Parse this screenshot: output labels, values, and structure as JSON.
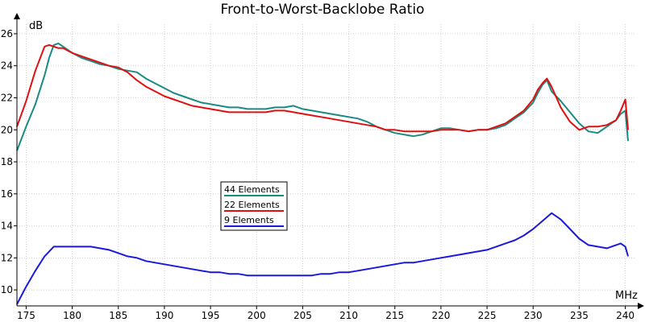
{
  "chart_data": {
    "type": "line",
    "title": "Front-to-Worst-Backlobe Ratio",
    "xlabel": "MHz",
    "ylabel": "dB",
    "xlim": [
      174,
      241
    ],
    "ylim": [
      9,
      26.6
    ],
    "xticks": [
      175,
      180,
      185,
      190,
      195,
      200,
      205,
      210,
      215,
      220,
      225,
      230,
      235,
      240
    ],
    "yticks": [
      10,
      12,
      14,
      16,
      18,
      20,
      22,
      24,
      26
    ],
    "grid": true,
    "legend_position": "center-left",
    "series": [
      {
        "name": "44 Elements",
        "color": "#1a8a82",
        "x": [
          174,
          175,
          176,
          177,
          177.5,
          178,
          178.5,
          179,
          180,
          181,
          182,
          183,
          184,
          185,
          186,
          187,
          188,
          189,
          190,
          191,
          192,
          193,
          194,
          195,
          196,
          197,
          198,
          199,
          200,
          201,
          202,
          203,
          204,
          205,
          206,
          207,
          208,
          209,
          210,
          211,
          212,
          213,
          214,
          215,
          216,
          217,
          218,
          219,
          220,
          221,
          222,
          223,
          224,
          225,
          226,
          227,
          228,
          229,
          230,
          230.5,
          231,
          231.5,
          232,
          233,
          234,
          235,
          236,
          237,
          238,
          239,
          239.5,
          240,
          240.3
        ],
        "y": [
          18.7,
          20.2,
          21.6,
          23.4,
          24.5,
          25.3,
          25.4,
          25.2,
          24.8,
          24.5,
          24.3,
          24.1,
          24.0,
          23.8,
          23.7,
          23.6,
          23.2,
          22.9,
          22.6,
          22.3,
          22.1,
          21.9,
          21.7,
          21.6,
          21.5,
          21.4,
          21.4,
          21.3,
          21.3,
          21.3,
          21.4,
          21.4,
          21.5,
          21.3,
          21.2,
          21.1,
          21.0,
          20.9,
          20.8,
          20.7,
          20.5,
          20.2,
          20.0,
          19.8,
          19.7,
          19.6,
          19.7,
          19.9,
          20.1,
          20.1,
          20.0,
          19.9,
          20.0,
          20.0,
          20.1,
          20.3,
          20.7,
          21.1,
          21.7,
          22.3,
          22.8,
          23.1,
          22.4,
          21.8,
          21.1,
          20.4,
          19.9,
          19.8,
          20.2,
          20.6,
          21.0,
          21.2,
          19.3
        ]
      },
      {
        "name": "22 Elements",
        "color": "#e01010",
        "x": [
          174,
          175,
          176,
          177,
          177.5,
          178,
          178.5,
          179,
          180,
          181,
          182,
          183,
          184,
          185,
          186,
          187,
          188,
          189,
          190,
          191,
          192,
          193,
          194,
          195,
          196,
          197,
          198,
          199,
          200,
          201,
          202,
          203,
          204,
          205,
          206,
          207,
          208,
          209,
          210,
          211,
          212,
          213,
          214,
          215,
          216,
          217,
          218,
          219,
          220,
          221,
          222,
          223,
          224,
          225,
          226,
          227,
          228,
          229,
          230,
          230.5,
          231,
          231.5,
          232,
          233,
          234,
          235,
          236,
          237,
          238,
          239,
          239.5,
          240,
          240.3
        ],
        "y": [
          20.2,
          21.8,
          23.7,
          25.2,
          25.3,
          25.2,
          25.1,
          25.1,
          24.8,
          24.6,
          24.4,
          24.2,
          24.0,
          23.9,
          23.6,
          23.1,
          22.7,
          22.4,
          22.1,
          21.9,
          21.7,
          21.5,
          21.4,
          21.3,
          21.2,
          21.1,
          21.1,
          21.1,
          21.1,
          21.1,
          21.2,
          21.2,
          21.1,
          21.0,
          20.9,
          20.8,
          20.7,
          20.6,
          20.5,
          20.4,
          20.3,
          20.2,
          20.0,
          20.0,
          19.9,
          19.9,
          19.9,
          19.9,
          20.0,
          20.0,
          20.0,
          19.9,
          20.0,
          20.0,
          20.2,
          20.4,
          20.8,
          21.2,
          21.9,
          22.5,
          22.9,
          23.2,
          22.7,
          21.4,
          20.5,
          20.0,
          20.2,
          20.2,
          20.3,
          20.6,
          21.2,
          21.9,
          20.0
        ]
      },
      {
        "name": "9 Elements",
        "color": "#1a1adc",
        "x": [
          174,
          175,
          176,
          177,
          178,
          179,
          180,
          181,
          182,
          183,
          184,
          185,
          186,
          187,
          188,
          189,
          190,
          191,
          192,
          193,
          194,
          195,
          196,
          197,
          198,
          199,
          200,
          201,
          202,
          203,
          204,
          205,
          206,
          207,
          208,
          209,
          210,
          211,
          212,
          213,
          214,
          215,
          216,
          217,
          218,
          219,
          220,
          221,
          222,
          223,
          224,
          225,
          226,
          227,
          228,
          229,
          230,
          231,
          232,
          233,
          234,
          235,
          236,
          237,
          238,
          239,
          239.5,
          240,
          240.3
        ],
        "y": [
          9.1,
          10.2,
          11.2,
          12.1,
          12.7,
          12.7,
          12.7,
          12.7,
          12.7,
          12.6,
          12.5,
          12.3,
          12.1,
          12.0,
          11.8,
          11.7,
          11.6,
          11.5,
          11.4,
          11.3,
          11.2,
          11.1,
          11.1,
          11.0,
          11.0,
          10.9,
          10.9,
          10.9,
          10.9,
          10.9,
          10.9,
          10.9,
          10.9,
          11.0,
          11.0,
          11.1,
          11.1,
          11.2,
          11.3,
          11.4,
          11.5,
          11.6,
          11.7,
          11.7,
          11.8,
          11.9,
          12.0,
          12.1,
          12.2,
          12.3,
          12.4,
          12.5,
          12.7,
          12.9,
          13.1,
          13.4,
          13.8,
          14.3,
          14.8,
          14.4,
          13.8,
          13.2,
          12.8,
          12.7,
          12.6,
          12.8,
          12.9,
          12.7,
          12.1
        ]
      }
    ]
  }
}
